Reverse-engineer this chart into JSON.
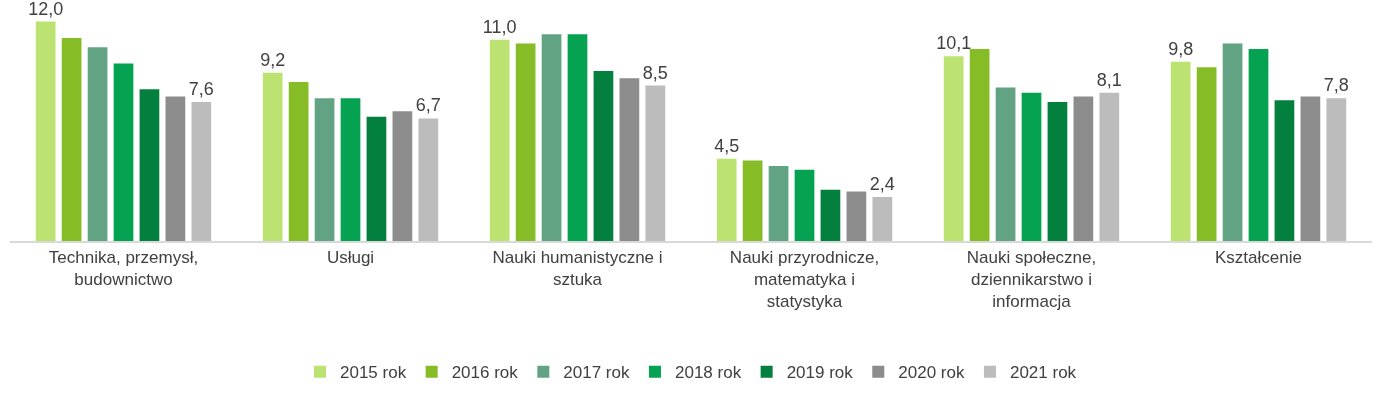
{
  "chart_data": {
    "type": "bar",
    "categories": [
      "Technika, przemysł, budownictwo",
      "Usługi",
      "Nauki humanistyczne i sztuka",
      "Nauki przyrodnicze, matematyka i statystyka",
      "Nauki społeczne, dziennikarstwo i informacja",
      "Kształcenie"
    ],
    "series": [
      {
        "name": "2015 rok",
        "color": "#bce272",
        "values": [
          12.0,
          9.2,
          11.0,
          4.5,
          10.1,
          9.8
        ],
        "value_labels": [
          "12,0",
          "9,2",
          "11,0",
          "4,5",
          "10,1",
          "9,8"
        ]
      },
      {
        "name": "2016 rok",
        "color": "#86bc25",
        "values": [
          11.1,
          8.7,
          10.8,
          4.4,
          10.5,
          9.5
        ]
      },
      {
        "name": "2017 rok",
        "color": "#62a384",
        "values": [
          10.6,
          7.8,
          11.3,
          4.1,
          8.4,
          10.8
        ]
      },
      {
        "name": "2018 rok",
        "color": "#05a351",
        "values": [
          9.7,
          7.8,
          11.3,
          3.9,
          8.1,
          10.5
        ]
      },
      {
        "name": "2019 rok",
        "color": "#037f3e",
        "values": [
          8.3,
          6.8,
          9.3,
          2.8,
          7.6,
          7.7
        ]
      },
      {
        "name": "2020 rok",
        "color": "#8c8c8c",
        "values": [
          7.9,
          7.1,
          8.9,
          2.7,
          7.9,
          7.9
        ]
      },
      {
        "name": "2021 rok",
        "color": "#bcbcbc",
        "values": [
          7.6,
          6.7,
          8.5,
          2.4,
          8.1,
          7.8
        ],
        "value_labels": [
          "7,6",
          "6,7",
          "8,5",
          "2,4",
          "8,1",
          "7,8"
        ]
      }
    ],
    "legend": "bottom",
    "tick_labels": "x"
  }
}
